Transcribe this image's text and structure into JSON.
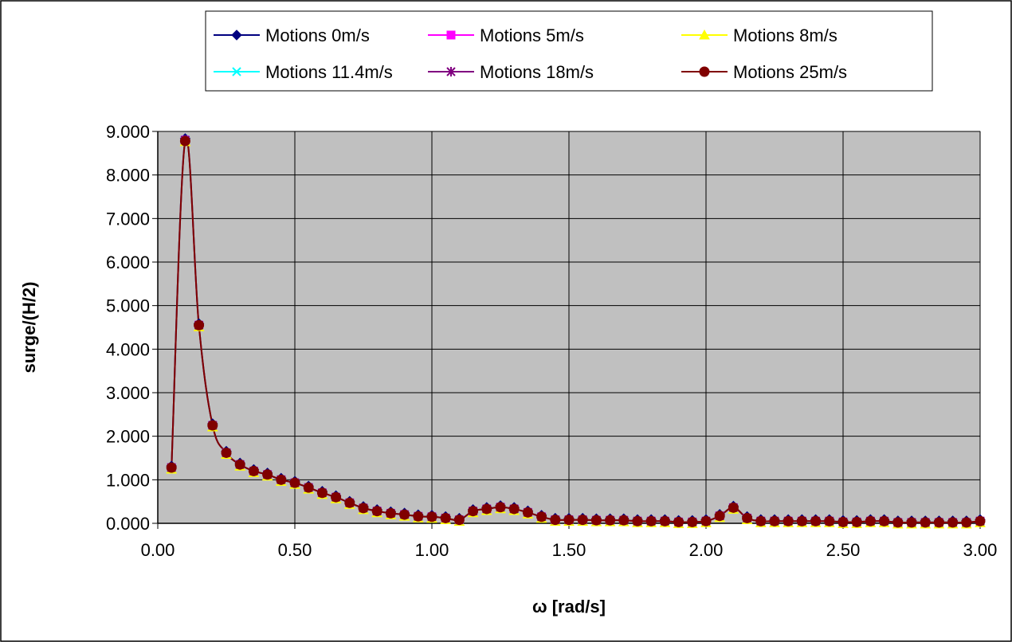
{
  "chart_data": {
    "type": "line",
    "title": "",
    "xlabel": "ω  [rad/s]",
    "ylabel": "surge/(H/2)",
    "xlim": [
      0,
      3
    ],
    "ylim": [
      0,
      9
    ],
    "x_ticks": [
      "0.00",
      "0.50",
      "1.00",
      "1.50",
      "2.00",
      "2.50",
      "3.00"
    ],
    "y_ticks": [
      "0.000",
      "1.000",
      "2.000",
      "3.000",
      "4.000",
      "5.000",
      "6.000",
      "7.000",
      "8.000",
      "9.000"
    ],
    "grid": true,
    "legend_position": "top",
    "x": [
      0.05,
      0.1,
      0.15,
      0.2,
      0.25,
      0.3,
      0.35,
      0.4,
      0.45,
      0.5,
      0.55,
      0.6,
      0.65,
      0.7,
      0.75,
      0.8,
      0.85,
      0.9,
      0.95,
      1.0,
      1.05,
      1.1,
      1.15,
      1.2,
      1.25,
      1.3,
      1.35,
      1.4,
      1.45,
      1.5,
      1.55,
      1.6,
      1.65,
      1.7,
      1.75,
      1.8,
      1.85,
      1.9,
      1.95,
      2.0,
      2.05,
      2.1,
      2.15,
      2.2,
      2.25,
      2.3,
      2.35,
      2.4,
      2.45,
      2.5,
      2.55,
      2.6,
      2.65,
      2.7,
      2.75,
      2.8,
      2.85,
      2.9,
      2.95,
      3.0
    ],
    "series": [
      {
        "name": "Motions 0m/s",
        "color": "#000080",
        "marker": "diamond",
        "values": [
          1.28,
          8.8,
          4.55,
          2.25,
          1.62,
          1.35,
          1.2,
          1.12,
          1.0,
          0.93,
          0.82,
          0.7,
          0.6,
          0.47,
          0.35,
          0.28,
          0.23,
          0.2,
          0.16,
          0.15,
          0.12,
          0.08,
          0.28,
          0.33,
          0.37,
          0.33,
          0.25,
          0.15,
          0.08,
          0.08,
          0.08,
          0.07,
          0.07,
          0.07,
          0.05,
          0.05,
          0.05,
          0.03,
          0.03,
          0.05,
          0.17,
          0.36,
          0.12,
          0.05,
          0.05,
          0.05,
          0.05,
          0.05,
          0.05,
          0.03,
          0.03,
          0.05,
          0.05,
          0.02,
          0.02,
          0.02,
          0.02,
          0.02,
          0.02,
          0.05
        ]
      },
      {
        "name": "Motions 5m/s",
        "color": "#FF00FF",
        "marker": "square",
        "values": [
          1.28,
          8.8,
          4.55,
          2.25,
          1.62,
          1.35,
          1.2,
          1.12,
          1.0,
          0.93,
          0.82,
          0.7,
          0.6,
          0.47,
          0.35,
          0.28,
          0.23,
          0.2,
          0.16,
          0.15,
          0.12,
          0.08,
          0.28,
          0.33,
          0.37,
          0.33,
          0.25,
          0.15,
          0.08,
          0.08,
          0.08,
          0.07,
          0.07,
          0.07,
          0.05,
          0.05,
          0.05,
          0.03,
          0.03,
          0.05,
          0.17,
          0.36,
          0.12,
          0.05,
          0.05,
          0.05,
          0.05,
          0.05,
          0.05,
          0.03,
          0.03,
          0.05,
          0.05,
          0.02,
          0.02,
          0.02,
          0.02,
          0.02,
          0.02,
          0.05
        ]
      },
      {
        "name": "Motions 8m/s",
        "color": "#FFFF00",
        "marker": "triangle",
        "values": [
          1.28,
          8.8,
          4.55,
          2.25,
          1.62,
          1.35,
          1.2,
          1.12,
          1.0,
          0.93,
          0.82,
          0.7,
          0.6,
          0.47,
          0.35,
          0.28,
          0.23,
          0.2,
          0.16,
          0.15,
          0.12,
          0.08,
          0.28,
          0.33,
          0.37,
          0.33,
          0.25,
          0.15,
          0.08,
          0.08,
          0.08,
          0.07,
          0.07,
          0.07,
          0.05,
          0.05,
          0.05,
          0.03,
          0.03,
          0.05,
          0.17,
          0.36,
          0.12,
          0.05,
          0.05,
          0.05,
          0.05,
          0.05,
          0.05,
          0.03,
          0.03,
          0.05,
          0.05,
          0.02,
          0.02,
          0.02,
          0.02,
          0.02,
          0.02,
          0.05
        ]
      },
      {
        "name": "Motions 11.4m/s",
        "color": "#00FFFF",
        "marker": "x",
        "values": [
          1.28,
          8.8,
          4.55,
          2.25,
          1.62,
          1.35,
          1.2,
          1.12,
          1.0,
          0.93,
          0.82,
          0.7,
          0.6,
          0.47,
          0.35,
          0.28,
          0.23,
          0.2,
          0.16,
          0.15,
          0.12,
          0.08,
          0.28,
          0.33,
          0.37,
          0.33,
          0.25,
          0.15,
          0.08,
          0.08,
          0.08,
          0.07,
          0.07,
          0.07,
          0.05,
          0.05,
          0.05,
          0.03,
          0.03,
          0.05,
          0.17,
          0.36,
          0.12,
          0.05,
          0.05,
          0.05,
          0.05,
          0.05,
          0.05,
          0.03,
          0.03,
          0.05,
          0.05,
          0.02,
          0.02,
          0.02,
          0.02,
          0.02,
          0.02,
          0.05
        ]
      },
      {
        "name": "Motions 18m/s",
        "color": "#800080",
        "marker": "star",
        "values": [
          1.28,
          8.8,
          4.55,
          2.25,
          1.62,
          1.35,
          1.2,
          1.12,
          1.0,
          0.93,
          0.82,
          0.7,
          0.6,
          0.47,
          0.35,
          0.28,
          0.23,
          0.2,
          0.16,
          0.15,
          0.12,
          0.08,
          0.28,
          0.33,
          0.37,
          0.33,
          0.25,
          0.15,
          0.08,
          0.08,
          0.08,
          0.07,
          0.07,
          0.07,
          0.05,
          0.05,
          0.05,
          0.03,
          0.03,
          0.05,
          0.17,
          0.36,
          0.12,
          0.05,
          0.05,
          0.05,
          0.05,
          0.05,
          0.05,
          0.03,
          0.03,
          0.05,
          0.05,
          0.02,
          0.02,
          0.02,
          0.02,
          0.02,
          0.02,
          0.05
        ]
      },
      {
        "name": "Motions 25m/s",
        "color": "#800000",
        "marker": "circle",
        "values": [
          1.28,
          8.78,
          4.55,
          2.25,
          1.62,
          1.35,
          1.2,
          1.12,
          1.0,
          0.93,
          0.82,
          0.7,
          0.6,
          0.47,
          0.35,
          0.28,
          0.23,
          0.2,
          0.16,
          0.15,
          0.12,
          0.08,
          0.28,
          0.33,
          0.37,
          0.33,
          0.25,
          0.15,
          0.08,
          0.08,
          0.08,
          0.07,
          0.07,
          0.07,
          0.05,
          0.05,
          0.05,
          0.03,
          0.03,
          0.05,
          0.17,
          0.36,
          0.12,
          0.05,
          0.05,
          0.05,
          0.05,
          0.05,
          0.05,
          0.03,
          0.03,
          0.05,
          0.05,
          0.02,
          0.02,
          0.02,
          0.02,
          0.02,
          0.02,
          0.05
        ]
      }
    ]
  }
}
